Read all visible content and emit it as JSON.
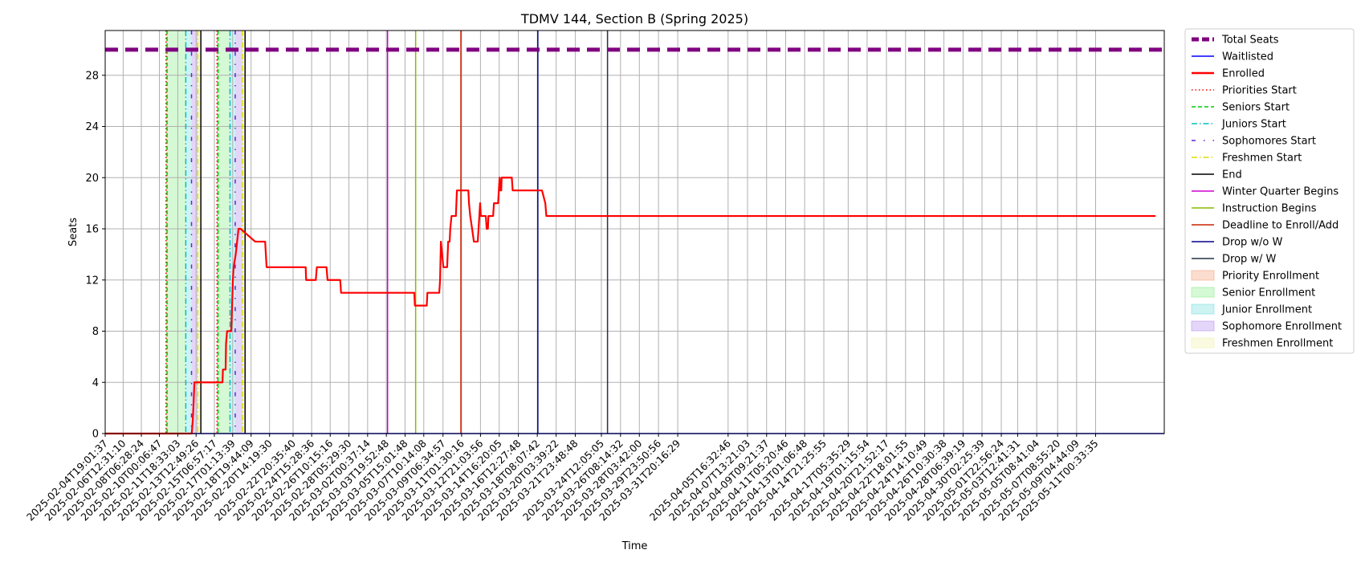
{
  "chart_data": {
    "type": "line",
    "title": "TDMV 144, Section B (Spring 2025)",
    "xlabel": "Time",
    "ylabel": "Seats",
    "ylim": [
      0,
      31.5
    ],
    "yticks": [
      0,
      4,
      8,
      12,
      16,
      20,
      24,
      28
    ],
    "xlim": [
      "2025-02-04T19:01:37",
      "2025-05-17T15:00:00"
    ],
    "xtick_labels": [
      "2025-02-04T19:01:37",
      "2025-02-06T12:31:10",
      "2025-02-08T06:28:24",
      "2025-02-10T00:06:47",
      "2025-02-11T18:33:03",
      "2025-02-13T12:49:26",
      "2025-02-15T06:57:17",
      "2025-02-17T01:13:39",
      "2025-02-18T19:44:09",
      "2025-02-20T14:19:30",
      "2025-02-22T20:35:40",
      "2025-02-24T15:28:36",
      "2025-02-26T10:15:16",
      "2025-02-28T05:29:30",
      "2025-03-02T00:37:14",
      "2025-03-03T19:52:48",
      "2025-03-05T15:01:48",
      "2025-03-07T10:14:08",
      "2025-03-09T06:34:57",
      "2025-03-11T01:30:16",
      "2025-03-12T21:03:56",
      "2025-03-14T16:20:05",
      "2025-03-16T12:27:48",
      "2025-03-18T08:07:42",
      "2025-03-20T03:39:22",
      "2025-03-21T23:48:48",
      "2025-03-24T12:05:05",
      "2025-03-26T08:14:32",
      "2025-03-28T03:42:00",
      "2025-03-29T23:50:56",
      "2025-03-31T20:16:29",
      "2025-04-05T16:32:46",
      "2025-04-07T13:21:03",
      "2025-04-09T09:21:37",
      "2025-04-11T05:20:46",
      "2025-04-13T01:06:48",
      "2025-04-14T21:25:55",
      "2025-04-17T05:35:29",
      "2025-04-19T01:15:54",
      "2025-04-20T21:52:17",
      "2025-04-22T18:01:55",
      "2025-04-24T14:10:49",
      "2025-04-26T10:30:38",
      "2025-04-28T06:39:19",
      "2025-04-30T02:25:39",
      "2025-05-01T22:56:24",
      "2025-05-03T12:41:31",
      "2025-05-05T08:41:04",
      "2025-05-07T08:55:20",
      "2025-05-09T04:44:09",
      "2025-05-11T00:33:35"
    ],
    "series": [
      {
        "name": "Total Seats",
        "color": "#800080",
        "style": "dashed-thick",
        "values": [
          30,
          30
        ]
      },
      {
        "name": "Waitlisted",
        "color": "#0000ff",
        "style": "solid",
        "values": [
          0,
          0
        ]
      },
      {
        "name": "Enrolled",
        "color": "#ff0000",
        "style": "solid-thick",
        "steps": [
          [
            0,
            0
          ],
          [
            8.32,
            0
          ],
          [
            8.42,
            1
          ],
          [
            8.48,
            2
          ],
          [
            8.58,
            4
          ],
          [
            11.28,
            4
          ],
          [
            11.32,
            5
          ],
          [
            11.58,
            5
          ],
          [
            11.62,
            7
          ],
          [
            11.72,
            8
          ],
          [
            12.12,
            8
          ],
          [
            12.2,
            10
          ],
          [
            12.28,
            12
          ],
          [
            12.35,
            13
          ],
          [
            12.55,
            14
          ],
          [
            12.82,
            16
          ],
          [
            13.02,
            16
          ],
          [
            14.42,
            15
          ],
          [
            15.38,
            15
          ],
          [
            15.45,
            14
          ],
          [
            15.52,
            13
          ],
          [
            19.28,
            13
          ],
          [
            19.32,
            12
          ],
          [
            20.25,
            12
          ],
          [
            20.35,
            13
          ],
          [
            21.28,
            13
          ],
          [
            21.38,
            12
          ],
          [
            22.6,
            12
          ],
          [
            22.68,
            11
          ],
          [
            29.72,
            11
          ],
          [
            29.78,
            10
          ],
          [
            30.92,
            10
          ],
          [
            30.98,
            11
          ],
          [
            32.12,
            11
          ],
          [
            32.2,
            12
          ],
          [
            32.28,
            15
          ],
          [
            32.4,
            14
          ],
          [
            32.52,
            13
          ],
          [
            32.88,
            13
          ],
          [
            32.98,
            15
          ],
          [
            33.12,
            15
          ],
          [
            33.18,
            16
          ],
          [
            33.3,
            17
          ],
          [
            33.72,
            17
          ],
          [
            33.82,
            19
          ],
          [
            34.92,
            19
          ],
          [
            34.98,
            18
          ],
          [
            35.1,
            17
          ],
          [
            35.28,
            16
          ],
          [
            35.45,
            15
          ],
          [
            35.82,
            15
          ],
          [
            35.9,
            16
          ],
          [
            36.05,
            18
          ],
          [
            36.12,
            17
          ],
          [
            36.6,
            17
          ],
          [
            36.68,
            16
          ],
          [
            36.8,
            16
          ],
          [
            36.85,
            17
          ],
          [
            37.3,
            17
          ],
          [
            37.38,
            18
          ],
          [
            37.78,
            18
          ],
          [
            37.85,
            19
          ],
          [
            37.92,
            20
          ],
          [
            38.0,
            19
          ],
          [
            38.08,
            19
          ],
          [
            38.12,
            20
          ],
          [
            39.1,
            20
          ],
          [
            39.18,
            19
          ],
          [
            42.0,
            19
          ],
          [
            42.32,
            18
          ],
          [
            42.42,
            17
          ],
          [
            101.0,
            17
          ]
        ]
      }
    ],
    "milestones": [
      {
        "name": "Priorities Start",
        "color": "#ff0000",
        "style": "dotted",
        "days": [
          5.85,
          10.75
        ]
      },
      {
        "name": "Seniors Start",
        "color": "#00cc00",
        "style": "dashed",
        "days": [
          5.95,
          10.85
        ]
      },
      {
        "name": "Juniors Start",
        "color": "#00bfbf",
        "style": "dashdot",
        "days": [
          7.75,
          12.0
        ]
      },
      {
        "name": "Sophomores Start",
        "color": "#6622dd",
        "style": "dashdot-sparse",
        "days": [
          8.3,
          12.5
        ]
      },
      {
        "name": "Freshmen Start",
        "color": "#dddd00",
        "style": "dashdot",
        "days": [
          8.9,
          13.2
        ]
      },
      {
        "name": "End",
        "color": "#000000",
        "style": "solid",
        "days": [
          9.2,
          13.45
        ]
      },
      {
        "name": "Winter Quarter Begins",
        "color": "#d000d0",
        "style": "solid",
        "days": [
          27.15
        ]
      },
      {
        "name": "Instruction Begins",
        "color": "#88bb00",
        "style": "solid",
        "days": [
          29.85
        ]
      },
      {
        "name": "Deadline to Enroll/Add",
        "color": "#cc2200",
        "style": "solid",
        "days": [
          34.2
        ]
      },
      {
        "name": "Drop w/o W",
        "color": "#00008b",
        "style": "solid",
        "days": [
          41.6
        ]
      },
      {
        "name": "Drop w/ W",
        "color": "#223344",
        "style": "solid",
        "days": [
          48.3
        ]
      }
    ],
    "periods": [
      {
        "name": "Priority Enrollment",
        "color": "#f4a582",
        "ranges": [
          [
            5.85,
            5.95
          ],
          [
            10.75,
            10.85
          ]
        ]
      },
      {
        "name": "Senior Enrollment",
        "color": "#90ee90",
        "ranges": [
          [
            5.95,
            7.75
          ],
          [
            10.85,
            12.0
          ]
        ]
      },
      {
        "name": "Junior Enrollment",
        "color": "#7fe0e0",
        "ranges": [
          [
            7.75,
            8.3
          ],
          [
            12.0,
            12.5
          ]
        ]
      },
      {
        "name": "Sophomore Enrollment",
        "color": "#b794f0",
        "ranges": [
          [
            8.3,
            8.9
          ],
          [
            12.5,
            13.2
          ]
        ]
      },
      {
        "name": "Freshmen Enrollment",
        "color": "#f2f2b0",
        "ranges": [
          [
            8.9,
            9.2
          ],
          [
            13.2,
            13.45
          ]
        ]
      }
    ],
    "legend": [
      "Total Seats",
      "Waitlisted",
      "Enrolled",
      "Priorities Start",
      "Seniors Start",
      "Juniors Start",
      "Sophomores Start",
      "Freshmen Start",
      "End",
      "Winter Quarter Begins",
      "Instruction Begins",
      "Deadline to Enroll/Add",
      "Drop w/o W",
      "Drop w/ W",
      "Priority Enrollment",
      "Senior Enrollment",
      "Junior Enrollment",
      "Sophomore Enrollment",
      "Freshmen Enrollment"
    ],
    "legend_placement": "outside-right",
    "grid": true
  }
}
